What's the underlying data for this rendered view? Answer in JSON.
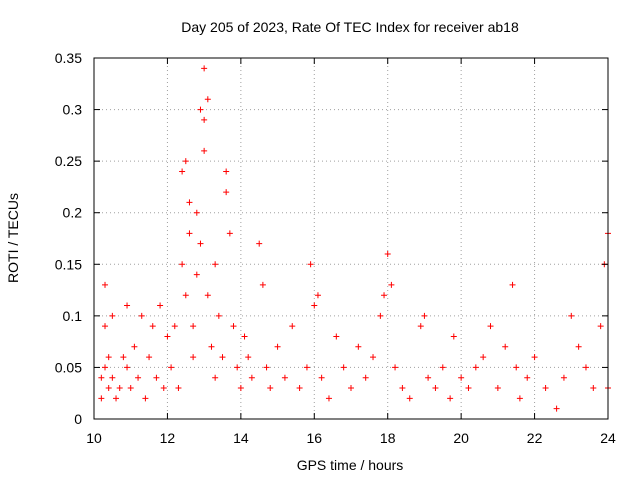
{
  "chart_data": {
    "type": "scatter",
    "title": "Day 205 of 2023, Rate Of TEC Index for receiver ab18",
    "xlabel": "GPS time / hours",
    "ylabel": "ROTI / TECUs",
    "xlim": [
      10,
      24
    ],
    "ylim": [
      0,
      0.35
    ],
    "xticks": [
      10,
      12,
      14,
      16,
      18,
      20,
      22,
      24
    ],
    "yticks": [
      0,
      0.05,
      0.1,
      0.15,
      0.2,
      0.25,
      0.3,
      0.35
    ],
    "ytick_labels": [
      "0",
      "0.05",
      "0.1",
      "0.15",
      "0.2",
      "0.25",
      "0.3",
      "0.35"
    ],
    "grid": true,
    "legend": "none",
    "marker": "plus",
    "series_color": "#ff0000",
    "series": [
      {
        "points": [
          [
            10.2,
            0.02
          ],
          [
            10.2,
            0.04
          ],
          [
            10.3,
            0.13
          ],
          [
            10.3,
            0.09
          ],
          [
            10.3,
            0.05
          ],
          [
            10.4,
            0.03
          ],
          [
            10.4,
            0.06
          ],
          [
            10.5,
            0.1
          ],
          [
            10.5,
            0.04
          ],
          [
            10.6,
            0.02
          ],
          [
            10.7,
            0.03
          ],
          [
            10.8,
            0.06
          ],
          [
            10.9,
            0.11
          ],
          [
            10.9,
            0.05
          ],
          [
            11.0,
            0.03
          ],
          [
            11.1,
            0.07
          ],
          [
            11.2,
            0.04
          ],
          [
            11.3,
            0.1
          ],
          [
            11.4,
            0.02
          ],
          [
            11.5,
            0.06
          ],
          [
            11.6,
            0.09
          ],
          [
            11.7,
            0.04
          ],
          [
            11.8,
            0.11
          ],
          [
            11.9,
            0.03
          ],
          [
            12.0,
            0.08
          ],
          [
            12.1,
            0.05
          ],
          [
            12.2,
            0.09
          ],
          [
            12.3,
            0.03
          ],
          [
            12.4,
            0.15
          ],
          [
            12.4,
            0.24
          ],
          [
            12.5,
            0.25
          ],
          [
            12.5,
            0.12
          ],
          [
            12.6,
            0.18
          ],
          [
            12.6,
            0.21
          ],
          [
            12.7,
            0.09
          ],
          [
            12.7,
            0.06
          ],
          [
            12.8,
            0.2
          ],
          [
            12.8,
            0.14
          ],
          [
            12.9,
            0.17
          ],
          [
            12.9,
            0.3
          ],
          [
            13.0,
            0.29
          ],
          [
            13.0,
            0.34
          ],
          [
            13.0,
            0.26
          ],
          [
            13.1,
            0.31
          ],
          [
            13.1,
            0.12
          ],
          [
            13.2,
            0.07
          ],
          [
            13.3,
            0.15
          ],
          [
            13.3,
            0.04
          ],
          [
            13.4,
            0.1
          ],
          [
            13.5,
            0.06
          ],
          [
            13.6,
            0.24
          ],
          [
            13.6,
            0.22
          ],
          [
            13.7,
            0.18
          ],
          [
            13.8,
            0.09
          ],
          [
            13.9,
            0.05
          ],
          [
            14.0,
            0.03
          ],
          [
            14.1,
            0.08
          ],
          [
            14.2,
            0.06
          ],
          [
            14.3,
            0.04
          ],
          [
            14.5,
            0.17
          ],
          [
            14.6,
            0.13
          ],
          [
            14.7,
            0.05
          ],
          [
            14.8,
            0.03
          ],
          [
            15.0,
            0.07
          ],
          [
            15.2,
            0.04
          ],
          [
            15.4,
            0.09
          ],
          [
            15.6,
            0.03
          ],
          [
            15.8,
            0.05
          ],
          [
            15.9,
            0.15
          ],
          [
            16.0,
            0.11
          ],
          [
            16.1,
            0.12
          ],
          [
            16.2,
            0.04
          ],
          [
            16.4,
            0.02
          ],
          [
            16.6,
            0.08
          ],
          [
            16.8,
            0.05
          ],
          [
            17.0,
            0.03
          ],
          [
            17.2,
            0.07
          ],
          [
            17.4,
            0.04
          ],
          [
            17.6,
            0.06
          ],
          [
            17.8,
            0.1
          ],
          [
            17.9,
            0.12
          ],
          [
            18.0,
            0.16
          ],
          [
            18.1,
            0.13
          ],
          [
            18.2,
            0.05
          ],
          [
            18.4,
            0.03
          ],
          [
            18.6,
            0.02
          ],
          [
            18.9,
            0.09
          ],
          [
            19.0,
            0.1
          ],
          [
            19.1,
            0.04
          ],
          [
            19.3,
            0.03
          ],
          [
            19.5,
            0.05
          ],
          [
            19.7,
            0.02
          ],
          [
            19.8,
            0.08
          ],
          [
            20.0,
            0.04
          ],
          [
            20.2,
            0.03
          ],
          [
            20.4,
            0.05
          ],
          [
            20.6,
            0.06
          ],
          [
            20.8,
            0.09
          ],
          [
            21.0,
            0.03
          ],
          [
            21.2,
            0.07
          ],
          [
            21.4,
            0.13
          ],
          [
            21.5,
            0.05
          ],
          [
            21.6,
            0.02
          ],
          [
            21.8,
            0.04
          ],
          [
            22.0,
            0.06
          ],
          [
            22.3,
            0.03
          ],
          [
            22.6,
            0.01
          ],
          [
            22.8,
            0.04
          ],
          [
            23.0,
            0.1
          ],
          [
            23.2,
            0.07
          ],
          [
            23.4,
            0.05
          ],
          [
            23.6,
            0.03
          ],
          [
            23.8,
            0.09
          ],
          [
            23.9,
            0.15
          ],
          [
            24.0,
            0.18
          ],
          [
            24.0,
            0.03
          ]
        ]
      }
    ]
  }
}
